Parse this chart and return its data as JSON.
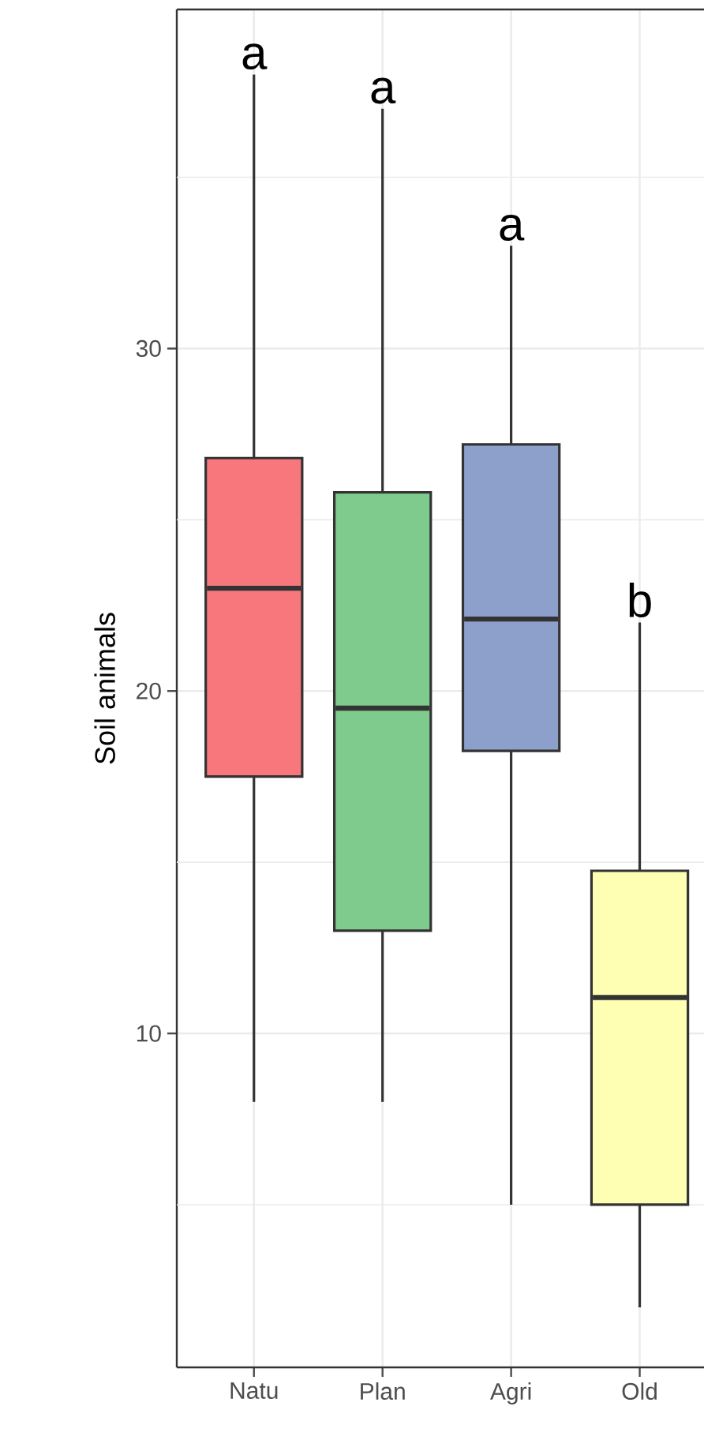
{
  "chart_data": {
    "type": "box",
    "ylabel": "Soil animals",
    "categories": [
      "Natu",
      "Plan",
      "Agri",
      "Old"
    ],
    "boxes": [
      {
        "low": 8,
        "q1": 17.5,
        "median": 23,
        "q3": 26.8,
        "high": 38
      },
      {
        "low": 8,
        "q1": 13,
        "median": 19.5,
        "q3": 25.8,
        "high": 37
      },
      {
        "low": 5,
        "q1": 18.25,
        "median": 22.1,
        "q3": 27.2,
        "high": 33
      },
      {
        "low": 2,
        "q1": 5,
        "median": 11.05,
        "q3": 14.75,
        "high": 22
      }
    ],
    "colors": [
      "#f8777d",
      "#7fcb8d",
      "#8da0cb",
      "#ffffb3"
    ],
    "ylim": [
      0.25,
      39.9
    ],
    "yticks": [
      {
        "value": 5,
        "label": null
      },
      10,
      {
        "value": 15,
        "label": null
      },
      20,
      {
        "value": 25,
        "label": null
      },
      30,
      {
        "value": 35,
        "label": null
      }
    ],
    "grid": true,
    "annotations": [
      "a",
      "a",
      "a",
      "b"
    ]
  }
}
